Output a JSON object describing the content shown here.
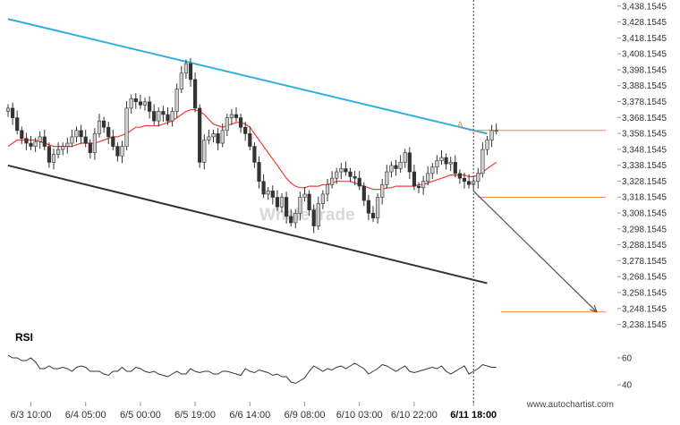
{
  "chart_data": {
    "type": "candlestick",
    "y_axis": {
      "ticks": [
        "3,438.1545",
        "3,428.1545",
        "3,418.1545",
        "3,408.1545",
        "3,398.1545",
        "3,388.1545",
        "3,378.1545",
        "3,368.1545",
        "3,358.1545",
        "3,348.1545",
        "3,338.1545",
        "3,328.1545",
        "3,318.1545",
        "3,308.1545",
        "3,298.1545",
        "3,288.1545",
        "3,278.1545",
        "3,268.1545",
        "3,258.1545",
        "3,248.1545",
        "3,238.1545"
      ],
      "min": 3231.1545,
      "max": 3439.1545
    },
    "x_axis": {
      "ticks": [
        {
          "label": "6/3 10:00",
          "index": 5
        },
        {
          "label": "6/4 05:00",
          "index": 17
        },
        {
          "label": "6/5 00:00",
          "index": 29
        },
        {
          "label": "6/5 19:00",
          "index": 41
        },
        {
          "label": "6/6 14:00",
          "index": 53
        },
        {
          "label": "6/9 08:00",
          "index": 65
        },
        {
          "label": "6/10 03:00",
          "index": 77
        },
        {
          "label": "6/10 22:00",
          "index": 89
        },
        {
          "label": "6/11 18:00",
          "index": 102
        }
      ],
      "highlight_label": "6/11 18:00",
      "num_bars": 108
    },
    "close": [
      3374,
      3368,
      3360,
      3355,
      3352,
      3350,
      3353,
      3356,
      3350,
      3340,
      3345,
      3348,
      3350,
      3352,
      3356,
      3360,
      3356,
      3352,
      3346,
      3358,
      3366,
      3362,
      3356,
      3350,
      3344,
      3350,
      3374,
      3380,
      3378,
      3376,
      3378,
      3372,
      3366,
      3372,
      3370,
      3366,
      3372,
      3386,
      3396,
      3402,
      3392,
      3374,
      3340,
      3354,
      3356,
      3358,
      3352,
      3360,
      3368,
      3370,
      3368,
      3362,
      3358,
      3350,
      3340,
      3328,
      3320,
      3322,
      3318,
      3312,
      3318,
      3306,
      3302,
      3308,
      3318,
      3320,
      3310,
      3300,
      3314,
      3320,
      3326,
      3330,
      3334,
      3336,
      3334,
      3331,
      3330,
      3325,
      3316,
      3308,
      3305,
      3318,
      3326,
      3334,
      3338,
      3336,
      3340,
      3346,
      3334,
      3325,
      3324,
      3328,
      3333,
      3337,
      3341,
      3343,
      3339,
      3340,
      3333,
      3330,
      3328,
      3326,
      3328,
      3333,
      3348,
      3354,
      3360,
      3360
    ],
    "current_bar_index": 102,
    "ma": [
      3350,
      3352,
      3354,
      3354,
      3354,
      3354,
      3354,
      3353,
      3352,
      3351,
      3350,
      3350,
      3350,
      3350,
      3350,
      3351,
      3352,
      3352,
      3352,
      3352,
      3353,
      3354,
      3355,
      3356,
      3356,
      3357,
      3358,
      3360,
      3362,
      3362,
      3363,
      3363,
      3363,
      3363,
      3364,
      3365,
      3366,
      3368,
      3370,
      3372,
      3373,
      3373,
      3372,
      3370,
      3367,
      3364,
      3363,
      3362,
      3363,
      3364,
      3365,
      3365,
      3364,
      3362,
      3358,
      3354,
      3350,
      3346,
      3342,
      3338,
      3334,
      3330,
      3327,
      3325,
      3324,
      3324,
      3325,
      3325,
      3325,
      3326,
      3326,
      3327,
      3328,
      3328,
      3328,
      3328,
      3327,
      3326,
      3325,
      3324,
      3323,
      3323,
      3323,
      3324,
      3324,
      3325,
      3325,
      3325,
      3325,
      3325,
      3326,
      3326,
      3327,
      3328,
      3329,
      3330,
      3331,
      3332,
      3332,
      3332,
      3332,
      3331,
      3331,
      3332,
      3334,
      3336,
      3338,
      3340
    ],
    "upper_channel": {
      "start": {
        "x_index": 0,
        "y": 3430
      },
      "end": {
        "x_index": 105,
        "y": 3358
      }
    },
    "lower_channel": {
      "start": {
        "x_index": 0,
        "y": 3338
      },
      "end": {
        "x_index": 105,
        "y": 3264
      }
    },
    "levels": [
      {
        "y": 3360,
        "from_index": 101,
        "to_index": 131
      },
      {
        "y": 3318,
        "from_index": 103,
        "to_index": 131
      },
      {
        "y": 3246,
        "from_index": 108,
        "to_index": 131
      }
    ],
    "projection": {
      "start": {
        "x_index": 102,
        "y": 3322
      },
      "end": {
        "x_index": 129,
        "y": 3246
      }
    },
    "annotation_label": "A",
    "rsi": {
      "label": "RSI",
      "ticks": [
        60,
        40
      ],
      "range": [
        30,
        70
      ],
      "values": [
        62,
        60,
        60,
        58,
        58,
        60,
        57,
        52,
        52,
        54,
        52,
        52,
        53,
        52,
        50,
        53,
        54,
        53,
        50,
        50,
        50,
        48,
        47,
        50,
        50,
        53,
        50,
        50,
        53,
        52,
        50,
        49,
        50,
        48,
        47,
        46,
        48,
        50,
        48,
        48,
        52,
        50,
        49,
        50,
        50,
        48,
        48,
        50,
        50,
        49,
        48,
        47,
        52,
        50,
        49,
        51,
        50,
        49,
        47,
        48,
        46,
        46,
        42,
        41,
        43,
        45,
        50,
        54,
        52,
        50,
        52,
        51,
        53,
        54,
        52,
        54,
        56,
        54,
        52,
        48,
        50,
        52,
        55,
        54,
        52,
        50,
        52,
        54,
        50,
        49,
        50,
        51,
        52,
        53,
        52,
        54,
        50,
        48,
        50,
        52,
        54,
        48,
        50,
        52,
        55,
        54,
        53,
        53
      ]
    },
    "watermark": "WhaleTrade",
    "credit": "www.autochartist.com",
    "colors": {
      "up_candle": "#cfcfcf",
      "down_candle": "#333333",
      "ma_line": "#e8403a",
      "upper_channel": "#30aee0",
      "lower_channel": "#333333",
      "level_line": "#f08a4b",
      "projection": "#555555",
      "current_bar_line": "#334455",
      "rsi_line": "#333333"
    }
  }
}
